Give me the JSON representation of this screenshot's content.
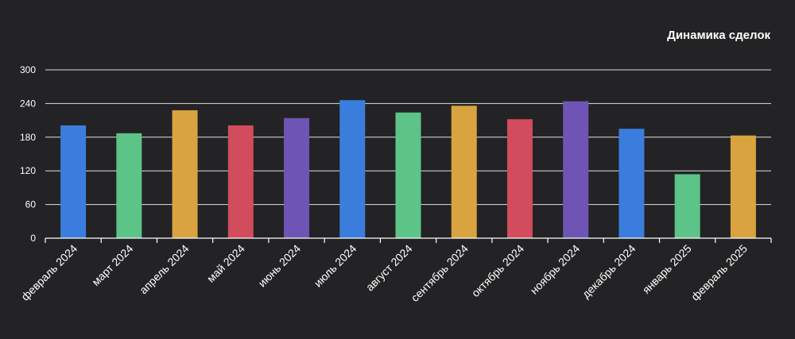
{
  "chart_data": {
    "type": "bar",
    "title": "Динамика сделок",
    "xlabel": "",
    "ylabel": "",
    "categories": [
      "февраль 2024",
      "март 2024",
      "апрель 2024",
      "май 2024",
      "июнь 2024",
      "июль 2024",
      "август 2024",
      "сентябрь 2024",
      "октябрь 2024",
      "ноябрь 2024",
      "декабрь 2024",
      "январь 2025",
      "февраль 2025"
    ],
    "values": [
      201,
      187,
      228,
      201,
      214,
      246,
      224,
      236,
      212,
      244,
      195,
      114,
      183
    ],
    "ylim": [
      0,
      300
    ],
    "yticks": [
      "0",
      "60",
      "120",
      "180",
      "240",
      "300"
    ],
    "grid": true,
    "legend": "none",
    "colors": [
      "#3b7ddd",
      "#5cc487",
      "#d9a33f",
      "#d14c5c",
      "#6e55b5"
    ]
  }
}
